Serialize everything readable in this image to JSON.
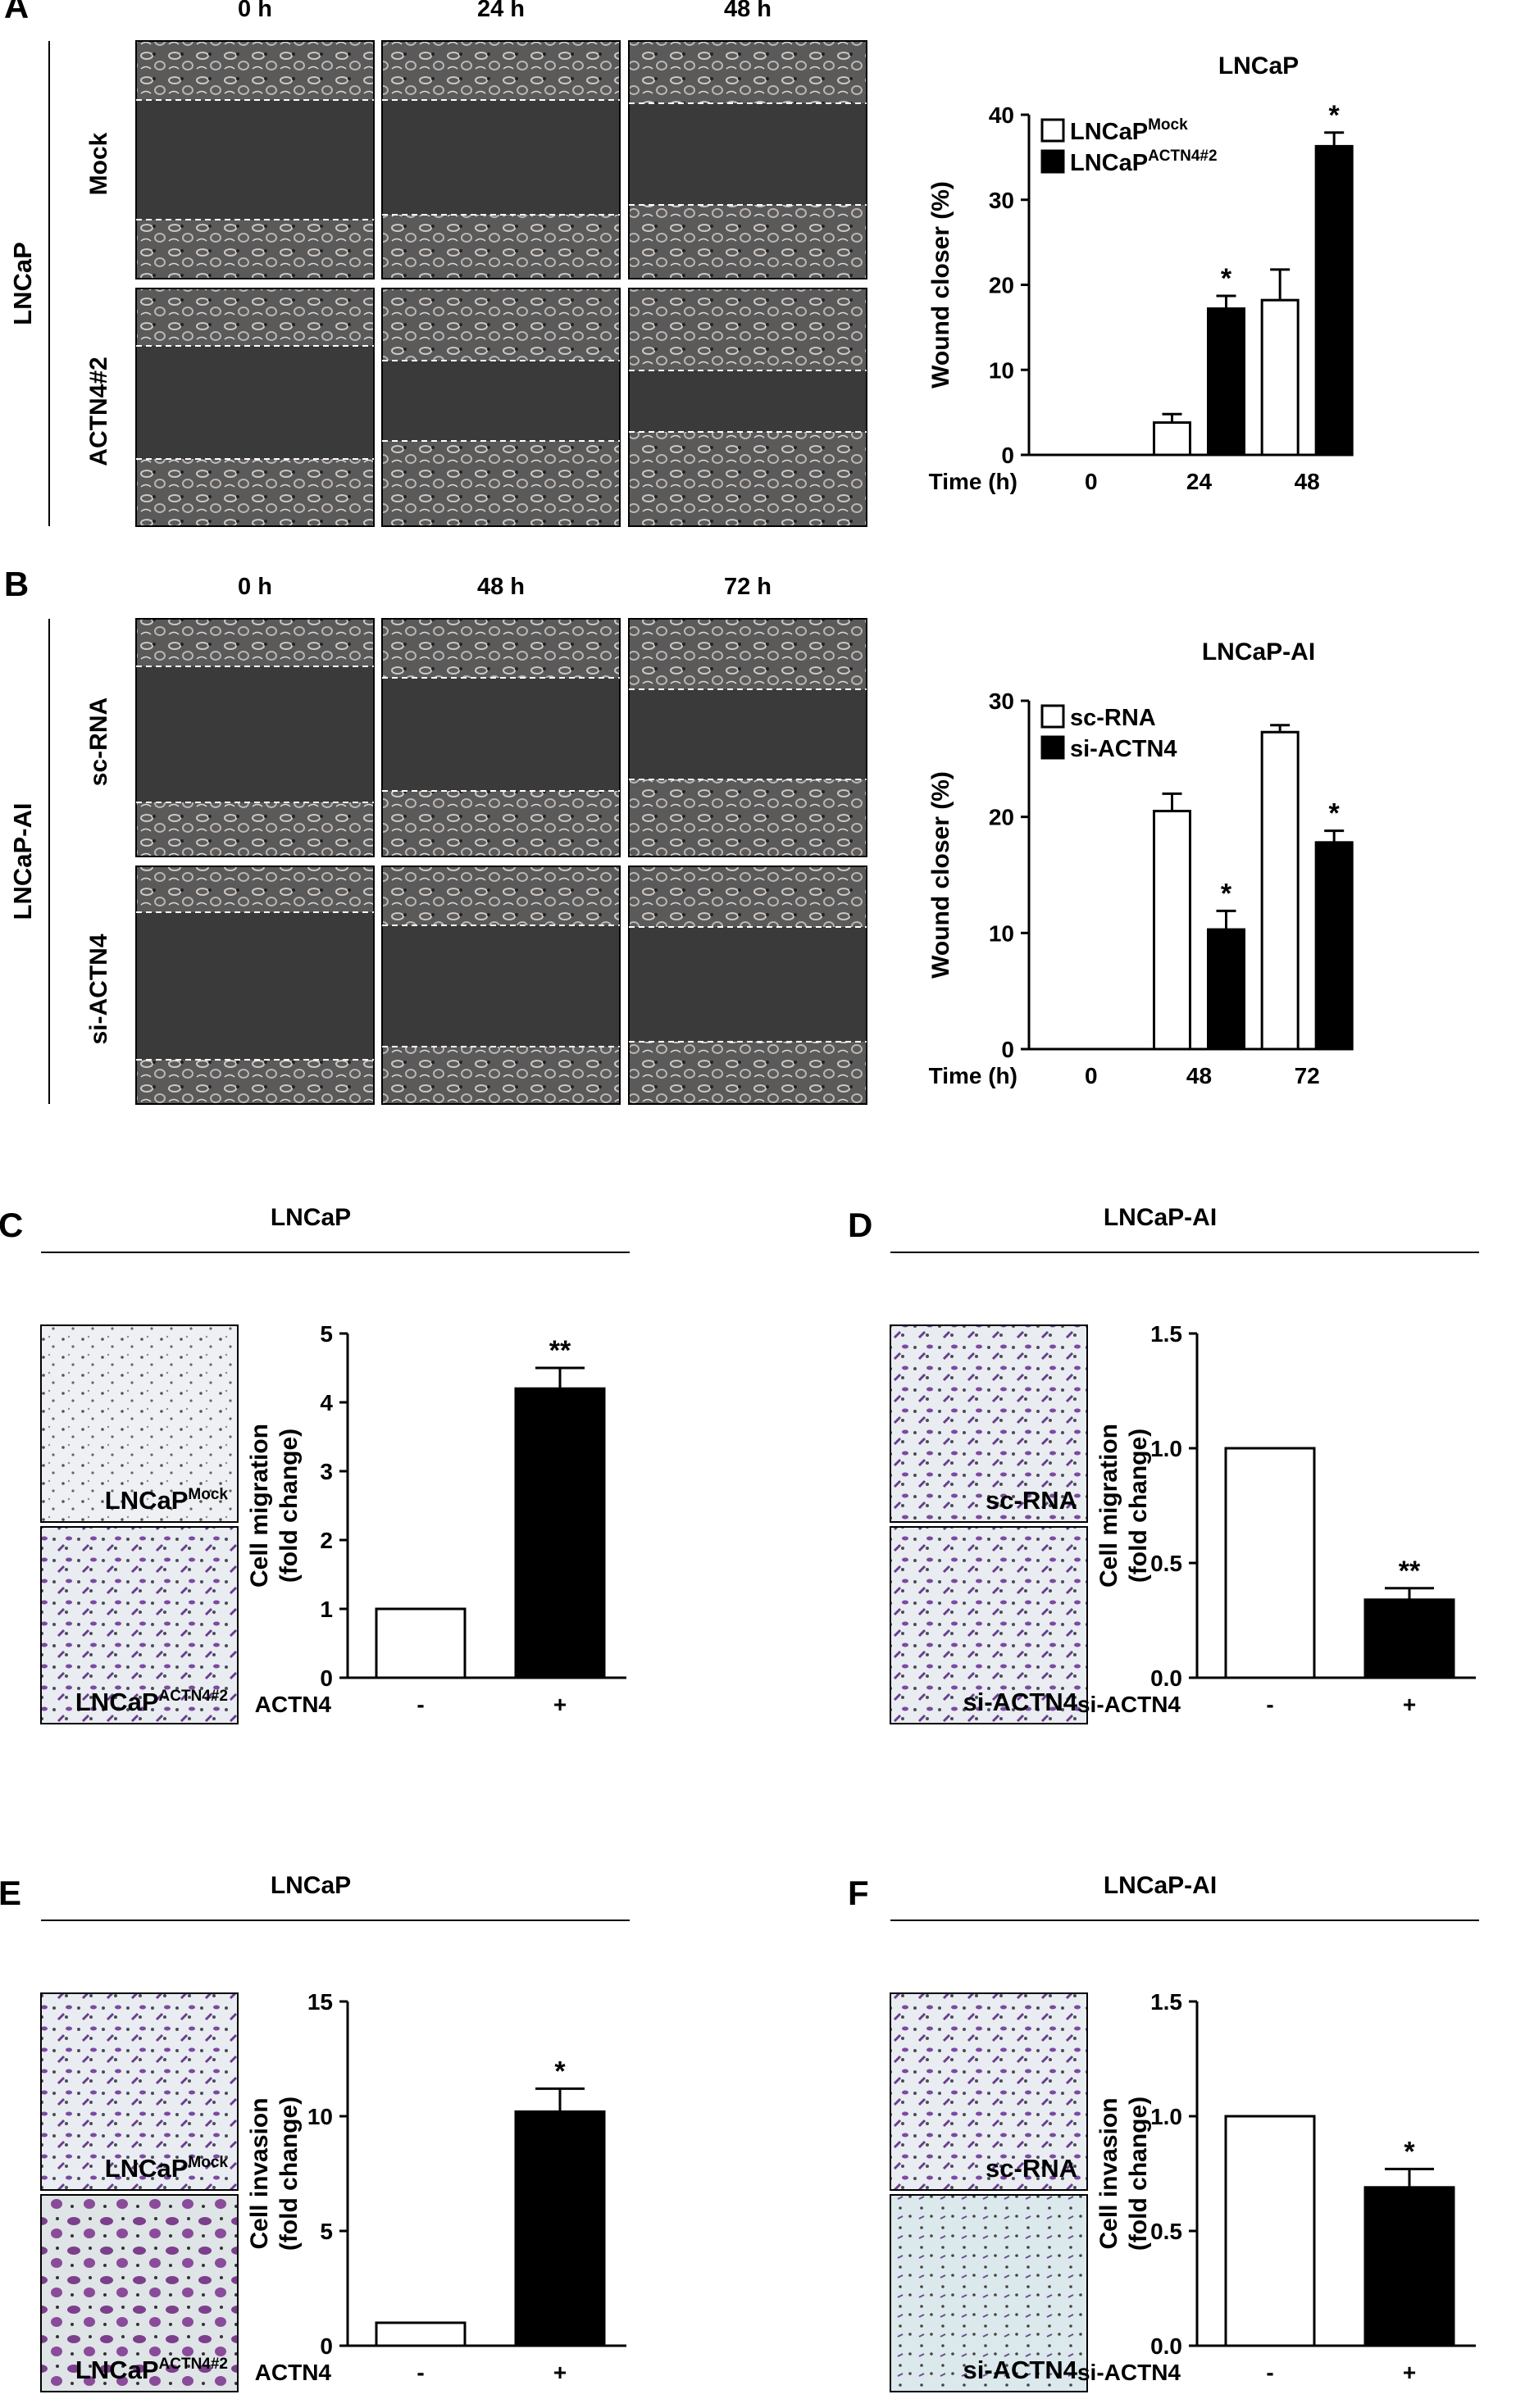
{
  "panels": {
    "A": {
      "letter": "A",
      "side_label": "LNCaP",
      "time_cols": [
        "0 h",
        "24 h",
        "48 h"
      ],
      "row_labels": [
        "Mock",
        "ACTN4#2"
      ]
    },
    "B": {
      "letter": "B",
      "side_label": "LNCaP-AI",
      "time_cols": [
        "0 h",
        "48 h",
        "72 h"
      ],
      "row_labels": [
        "sc-RNA",
        "si-ACTN4"
      ]
    },
    "C": {
      "letter": "C",
      "title": "LNCaP",
      "photo_labels": [
        {
          "base": "LNCaP",
          "sup": "Mock"
        },
        {
          "base": "LNCaP",
          "sup": "ACTN4#2"
        }
      ]
    },
    "D": {
      "letter": "D",
      "title": "LNCaP-AI",
      "photo_labels": [
        {
          "base": "sc-RNA",
          "sup": ""
        },
        {
          "base": "si-ACTN4",
          "sup": ""
        }
      ]
    },
    "E": {
      "letter": "E",
      "title": "LNCaP",
      "photo_labels": [
        {
          "base": "LNCaP",
          "sup": "Mock"
        },
        {
          "base": "LNCaP",
          "sup": "ACTN4#2"
        }
      ]
    },
    "F": {
      "letter": "F",
      "title": "LNCaP-AI",
      "photo_labels": [
        {
          "base": "sc-RNA",
          "sup": ""
        },
        {
          "base": "si-ACTN4",
          "sup": ""
        }
      ]
    }
  },
  "chart_data": [
    {
      "id": "A",
      "type": "bar",
      "title": "LNCaP",
      "ylabel": "Wound closer (%)",
      "xlabel": "Time (h)",
      "categories": [
        "0",
        "24",
        "48"
      ],
      "ylim": [
        0,
        40
      ],
      "yticks": [
        "0",
        "10",
        "20",
        "30",
        "40"
      ],
      "legend": "top-left",
      "series": [
        {
          "name": "LNCaP",
          "name_sup": "Mock",
          "fill": "#ffffff",
          "values": [
            0,
            3.8,
            18.2
          ],
          "errors": [
            0,
            1.0,
            3.6
          ],
          "stars": [
            "",
            "",
            ""
          ]
        },
        {
          "name": "LNCaP",
          "name_sup": "ACTN4#2",
          "fill": "#000000",
          "values": [
            0,
            17.2,
            36.3
          ],
          "errors": [
            0,
            1.5,
            1.6
          ],
          "stars": [
            "",
            "*",
            "*"
          ]
        }
      ]
    },
    {
      "id": "B",
      "type": "bar",
      "title": "LNCaP-AI",
      "ylabel": "Wound closer (%)",
      "xlabel": "Time (h)",
      "categories": [
        "0",
        "48",
        "72"
      ],
      "ylim": [
        0,
        30
      ],
      "yticks": [
        "0",
        "10",
        "20",
        "30"
      ],
      "legend": "top-left",
      "series": [
        {
          "name": "sc-RNA",
          "name_sup": "",
          "fill": "#ffffff",
          "values": [
            0,
            20.5,
            27.3
          ],
          "errors": [
            0,
            1.5,
            0.6
          ],
          "stars": [
            "",
            "",
            ""
          ]
        },
        {
          "name": "si-ACTN4",
          "name_sup": "",
          "fill": "#000000",
          "values": [
            0,
            10.3,
            17.8
          ],
          "errors": [
            0,
            1.6,
            1.0
          ],
          "stars": [
            "",
            "*",
            "*"
          ]
        }
      ]
    },
    {
      "id": "C",
      "type": "bar",
      "ylabel": [
        "Cell migration",
        "(fold change)"
      ],
      "xlabel": "ACTN4",
      "categories": [
        "-",
        "+"
      ],
      "ylim": [
        0,
        5
      ],
      "yticks": [
        "0",
        "1",
        "2",
        "3",
        "4",
        "5"
      ],
      "values": [
        1.0,
        4.2
      ],
      "errors": [
        0.0,
        0.3
      ],
      "fills": [
        "#ffffff",
        "#000000"
      ],
      "stars": [
        "",
        "**"
      ]
    },
    {
      "id": "D",
      "type": "bar",
      "ylabel": [
        "Cell migration",
        "(fold change)"
      ],
      "xlabel": "si-ACTN4",
      "categories": [
        "-",
        "+"
      ],
      "ylim": [
        0,
        1.5
      ],
      "yticks": [
        "0.0",
        "0.5",
        "1.0",
        "1.5"
      ],
      "values": [
        1.0,
        0.34
      ],
      "errors": [
        0.0,
        0.05
      ],
      "fills": [
        "#ffffff",
        "#000000"
      ],
      "stars": [
        "",
        "**"
      ]
    },
    {
      "id": "E",
      "type": "bar",
      "ylabel": [
        "Cell invasion",
        "(fold change)"
      ],
      "xlabel": "ACTN4",
      "categories": [
        "-",
        "+"
      ],
      "ylim": [
        0,
        15
      ],
      "yticks": [
        "0",
        "5",
        "10",
        "15"
      ],
      "values": [
        1.0,
        10.2
      ],
      "errors": [
        0.0,
        1.0
      ],
      "fills": [
        "#ffffff",
        "#000000"
      ],
      "stars": [
        "",
        "*"
      ]
    },
    {
      "id": "F",
      "type": "bar",
      "ylabel": [
        "Cell invasion",
        "(fold change)"
      ],
      "xlabel": "si-ACTN4",
      "categories": [
        "-",
        "+"
      ],
      "ylim": [
        0,
        1.5
      ],
      "yticks": [
        "0.0",
        "0.5",
        "1.0",
        "1.5"
      ],
      "values": [
        1.0,
        0.69
      ],
      "errors": [
        0.0,
        0.08
      ],
      "fills": [
        "#ffffff",
        "#000000"
      ],
      "stars": [
        "",
        "*"
      ]
    }
  ]
}
